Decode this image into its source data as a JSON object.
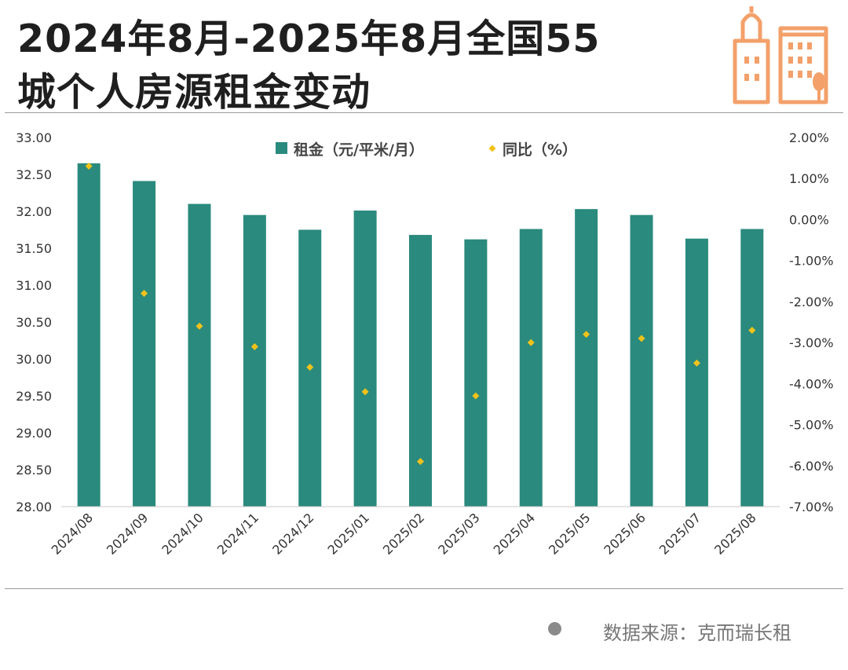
{
  "header": {
    "title_line1": "2024年8月-2025年8月全国55",
    "title_line2": "城个人房源租金变动"
  },
  "footer": {
    "source": "数据来源：克而瑞长租"
  },
  "colors": {
    "bar": "#2a8a7d",
    "point": "#f2c21b",
    "logo": "#f3a06a",
    "title": "#1f1f1f"
  },
  "chart_data": {
    "type": "bar",
    "categories": [
      "2024/08",
      "2024/09",
      "2024/10",
      "2024/11",
      "2024/12",
      "2025/01",
      "2025/02",
      "2025/03",
      "2025/04",
      "2025/05",
      "2025/06",
      "2025/07",
      "2025/08"
    ],
    "series": [
      {
        "name": "租金（元/平米/月）",
        "type": "bar",
        "axis": "left",
        "values": [
          32.65,
          32.41,
          32.1,
          31.95,
          31.75,
          32.01,
          31.68,
          31.62,
          31.76,
          32.03,
          31.95,
          31.63,
          31.76
        ]
      },
      {
        "name": "同比（%）",
        "type": "scatter",
        "axis": "right",
        "values": [
          1.3,
          -1.8,
          -2.6,
          -3.1,
          -3.6,
          -4.2,
          -5.9,
          -4.3,
          -3.0,
          -2.8,
          -2.9,
          -3.5,
          -2.7
        ]
      }
    ],
    "ylim": [
      28.0,
      33.0
    ],
    "yticks": [
      "28.00",
      "28.50",
      "29.00",
      "29.50",
      "30.00",
      "30.50",
      "31.00",
      "31.50",
      "32.00",
      "32.50",
      "33.00"
    ],
    "y2lim": [
      -7.0,
      2.0
    ],
    "y2ticks": [
      "-7.00%",
      "-6.00%",
      "-5.00%",
      "-4.00%",
      "-3.00%",
      "-2.00%",
      "-1.00%",
      "0.00%",
      "1.00%",
      "2.00%"
    ],
    "xlabel": "",
    "ylabel": "",
    "legend_position": "top-center",
    "grid": false
  }
}
